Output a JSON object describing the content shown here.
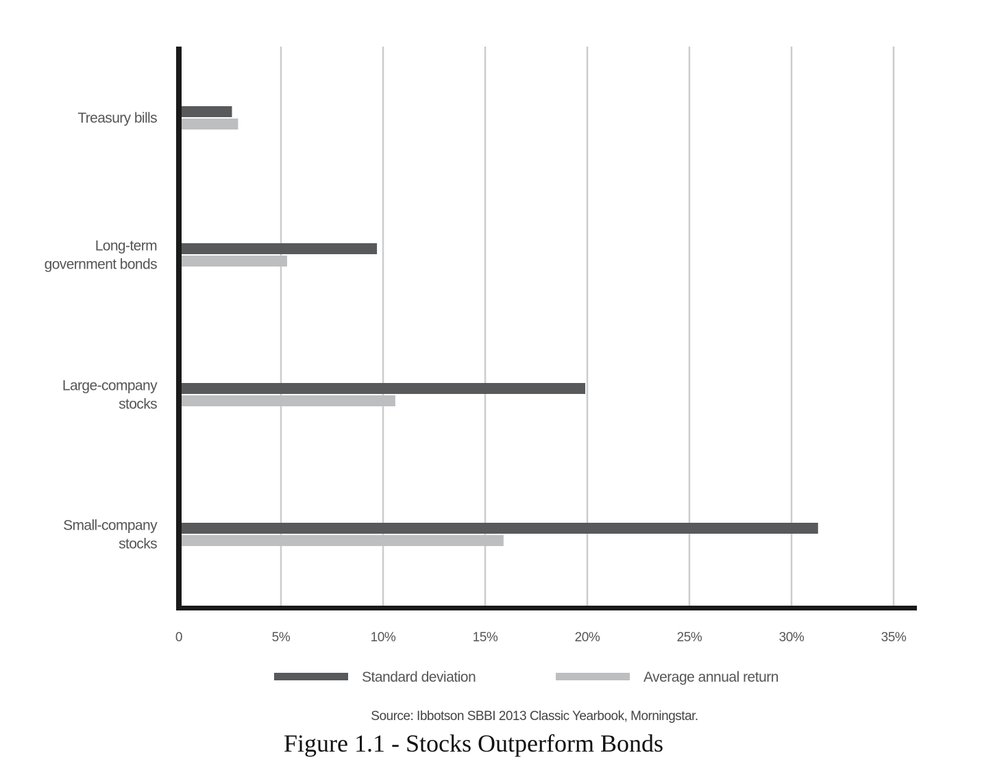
{
  "chart_data": {
    "type": "bar",
    "orientation": "horizontal",
    "categories": [
      [
        "Treasury bills"
      ],
      [
        "Long-term",
        "government bonds"
      ],
      [
        "Large-company",
        "stocks"
      ],
      [
        "Small-company",
        "stocks"
      ]
    ],
    "series": [
      {
        "name": "Standard deviation",
        "color": "#58595b",
        "values": [
          2.6,
          9.7,
          19.9,
          31.3
        ]
      },
      {
        "name": "Average annual return",
        "color": "#bcbec0",
        "values": [
          2.9,
          5.3,
          10.6,
          15.9
        ]
      }
    ],
    "x_ticks": [
      {
        "value": 0,
        "label": "0"
      },
      {
        "value": 5,
        "label": "5%"
      },
      {
        "value": 10,
        "label": "10%"
      },
      {
        "value": 15,
        "label": "15%"
      },
      {
        "value": 20,
        "label": "20%"
      },
      {
        "value": 25,
        "label": "25%"
      },
      {
        "value": 30,
        "label": "30%"
      },
      {
        "value": 35,
        "label": "35%"
      }
    ],
    "xlim": [
      0,
      35
    ],
    "grid": true,
    "legend_position": "bottom",
    "source": "Source: Ibbotson SBBI 2013 Classic Yearbook, Morningstar.",
    "xlabel": "",
    "ylabel": ""
  },
  "caption": "Figure 1.1 - Stocks Outperform Bonds",
  "colors": {
    "axis": "#1a1a1a",
    "grid": "#cccccc",
    "text": "#555555"
  }
}
